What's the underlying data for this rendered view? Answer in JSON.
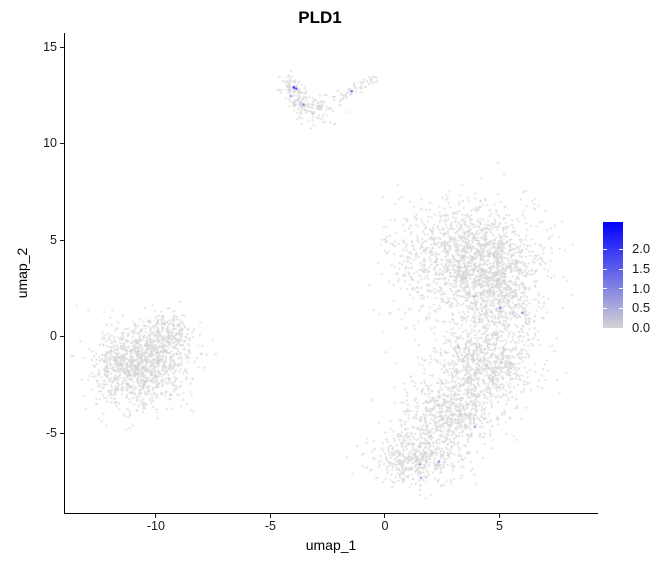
{
  "chart_data": {
    "type": "scatter",
    "title": "PLD1",
    "xlabel": "umap_1",
    "ylabel": "umap_2",
    "xticks": [
      -10,
      -5,
      0,
      5
    ],
    "yticks": [
      15,
      10,
      5,
      0,
      -5
    ],
    "xlim": [
      -13.97,
      9.26
    ],
    "ylim": [
      -9.12,
      15.75
    ],
    "grid": false,
    "point_color_low": "#D3D3D3",
    "point_color_high": "#0000FF",
    "colorbar": {
      "position": "right",
      "labels": [
        "2.0",
        "1.5",
        "1.0",
        "0.5",
        "0.0"
      ],
      "values": [
        2.0,
        1.5,
        1.0,
        0.5,
        0.0
      ],
      "min": 0.0,
      "max": 2.7
    },
    "clusters": [
      {
        "name": "top-arm-left",
        "type": "gauss",
        "cx": -3.9,
        "cy": 12.55,
        "sx": 0.3,
        "sy": 0.5,
        "corr": -0.5,
        "n": 130
      },
      {
        "name": "top-arm-mid",
        "type": "gauss",
        "cx": -3.0,
        "cy": 11.9,
        "sx": 0.45,
        "sy": 0.28,
        "n": 75
      },
      {
        "name": "top-tail",
        "type": "line",
        "x1": -2.2,
        "y1": 12.3,
        "x2": -0.55,
        "y2": 13.3,
        "jitter": 0.13,
        "n": 55
      },
      {
        "name": "top-sparse-below",
        "type": "gauss",
        "cx": -2.9,
        "cy": 11.2,
        "sx": 0.5,
        "sy": 0.2,
        "n": 12
      },
      {
        "name": "left-main",
        "type": "gauss",
        "cx": -10.7,
        "cy": -1.7,
        "sx": 0.9,
        "sy": 1.05,
        "n": 750
      },
      {
        "name": "left-upper",
        "type": "gauss",
        "cx": -9.8,
        "cy": -0.8,
        "sx": 0.75,
        "sy": 0.9,
        "n": 350
      },
      {
        "name": "left-top-lobe",
        "type": "gauss",
        "cx": -9.45,
        "cy": 0.35,
        "sx": 0.4,
        "sy": 0.5,
        "n": 130
      },
      {
        "name": "left-west",
        "type": "gauss",
        "cx": -11.6,
        "cy": -1.4,
        "sx": 0.55,
        "sy": 0.85,
        "n": 170
      },
      {
        "name": "right-upper",
        "type": "gauss",
        "cx": 3.9,
        "cy": 4.0,
        "sx": 1.4,
        "sy": 1.5,
        "n": 1500
      },
      {
        "name": "right-upper-east",
        "type": "gauss",
        "cx": 4.9,
        "cy": 2.0,
        "sx": 1.0,
        "sy": 1.2,
        "n": 500
      },
      {
        "name": "right-mid",
        "type": "gauss",
        "cx": 4.3,
        "cy": -1.4,
        "sx": 1.15,
        "sy": 1.0,
        "n": 800
      },
      {
        "name": "right-lower",
        "type": "gauss",
        "cx": 3.0,
        "cy": -3.9,
        "sx": 1.0,
        "sy": 0.85,
        "n": 600
      },
      {
        "name": "right-foot",
        "type": "gauss",
        "cx": 1.35,
        "cy": -6.2,
        "sx": 1.0,
        "sy": 0.75,
        "n": 550
      },
      {
        "name": "right-west-sparse",
        "type": "gauss",
        "cx": 1.1,
        "cy": 3.5,
        "sx": 0.7,
        "sy": 1.9,
        "n": 110
      },
      {
        "name": "mid-streak",
        "type": "line",
        "x1": -0.15,
        "y1": 4.95,
        "x2": 0.95,
        "y2": 4.8,
        "jitter": 0.08,
        "n": 10
      },
      {
        "name": "lone-point",
        "type": "gauss",
        "cx": 0.5,
        "cy": 7.9,
        "sx": 0.02,
        "sy": 0.02,
        "n": 1
      }
    ],
    "expressing_cells": [
      {
        "x": -3.98,
        "y": 12.93,
        "value": 2.6
      },
      {
        "x": -3.87,
        "y": 12.87,
        "value": 2.1
      },
      {
        "x": -4.12,
        "y": 12.48,
        "value": 0.9
      },
      {
        "x": -3.55,
        "y": 12.05,
        "value": 1.3
      },
      {
        "x": -1.45,
        "y": 12.74,
        "value": 1.6
      },
      {
        "x": 5.05,
        "y": 1.5,
        "value": 1.2
      },
      {
        "x": 6.0,
        "y": 1.25,
        "value": 1.2
      },
      {
        "x": 3.9,
        "y": 2.1,
        "value": 0.5
      },
      {
        "x": 3.93,
        "y": -4.65,
        "value": 1.0
      },
      {
        "x": 2.36,
        "y": -6.45,
        "value": 1.0
      },
      {
        "x": 1.53,
        "y": -6.6,
        "value": 0.9
      },
      {
        "x": 1.57,
        "y": -7.3,
        "value": 1.0
      },
      {
        "x": 3.2,
        "y": -0.5,
        "value": 0.6
      }
    ]
  }
}
